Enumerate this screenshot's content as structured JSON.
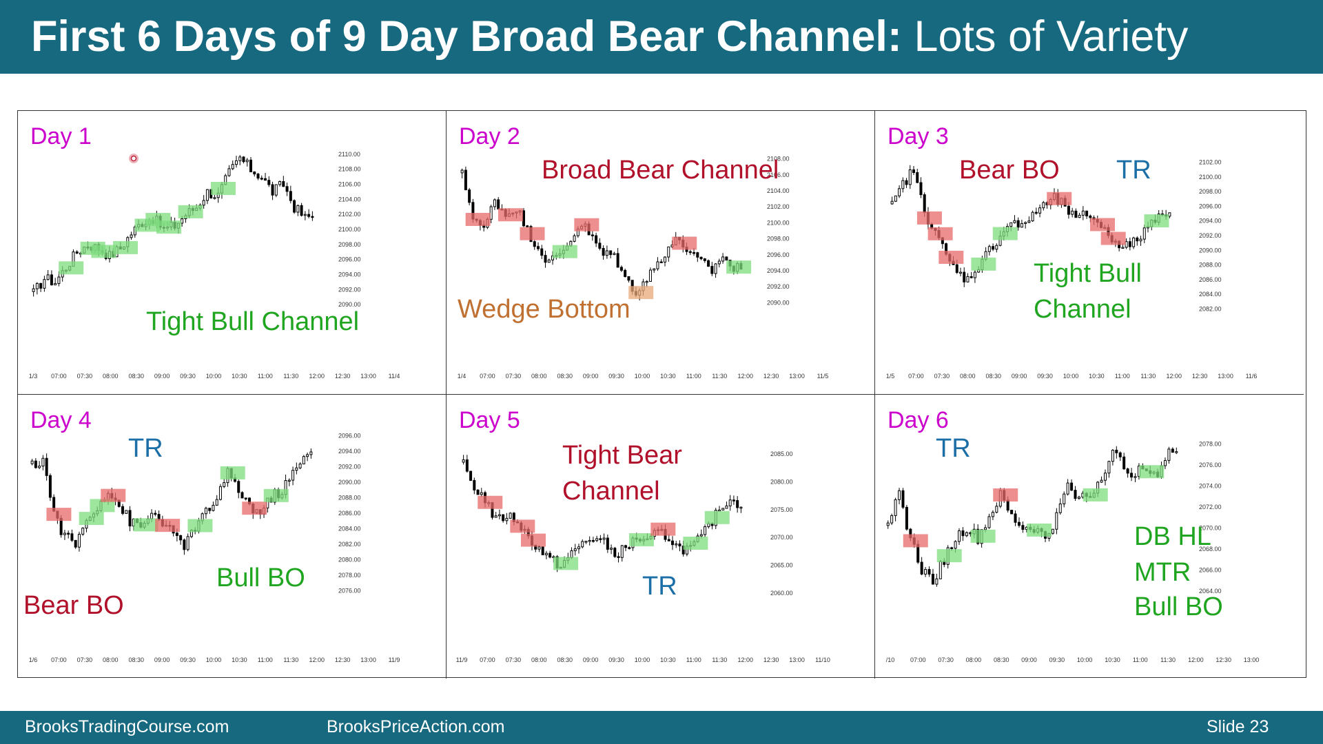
{
  "slide": {
    "title_bold": "First 6 Days of 9 Day Broad Bear Channel:",
    "title_normal": "Lots of Variety",
    "footer_left": "BrooksTradingCourse.com",
    "footer_mid": "BrooksPriceAction.com",
    "footer_right": "Slide  23"
  },
  "colors": {
    "header_bg": "#17697f",
    "day_label": "#cc00cc",
    "bull_annotation": "#1fa51f",
    "bear_annotation": "#b0102a",
    "tr_annotation": "#1c6fa6",
    "wedge_annotation": "#c07030",
    "bull_highlight": "#7ddc7d",
    "bear_highlight": "#e86a6a",
    "wedge_highlight": "#e8a878"
  },
  "chart_data": [
    {
      "type": "candlestick",
      "day": "Day 1",
      "x_ticks": [
        "1/3",
        "07:00",
        "07:30",
        "08:00",
        "08:30",
        "09:00",
        "09:30",
        "10:00",
        "10:30",
        "11:00",
        "11:30",
        "12:00",
        "12:30",
        "13:00",
        "11/4"
      ],
      "y_ticks": [
        "2110.00",
        "2108.00",
        "2106.00",
        "2104.00",
        "2102.00",
        "2100.00",
        "2098.00",
        "2096.00",
        "2094.00",
        "2092.00",
        "2090.00"
      ],
      "ylim": [
        2089,
        2111
      ],
      "close_path": [
        2091.5,
        2093.5,
        2093,
        2095,
        2097,
        2098,
        2097.5,
        2096.5,
        2097.5,
        2099.5,
        2101,
        2101.5,
        2100,
        2100.5,
        2102,
        2103,
        2105,
        2104.5,
        2107.5,
        2109.5,
        2108,
        2107,
        2105,
        2106,
        2103,
        2101.5,
        2102
      ],
      "annotations": [
        {
          "text": "Tight Bull Channel",
          "color": "bull"
        }
      ],
      "highlights": [
        {
          "idx": 3,
          "kind": "bull"
        },
        {
          "idx": 5,
          "kind": "bull"
        },
        {
          "idx": 6,
          "kind": "bull"
        },
        {
          "idx": 8,
          "kind": "bull"
        },
        {
          "idx": 10,
          "kind": "bull"
        },
        {
          "idx": 11,
          "kind": "bull"
        },
        {
          "idx": 12,
          "kind": "bull"
        },
        {
          "idx": 14,
          "kind": "bull"
        },
        {
          "idx": 17,
          "kind": "bull"
        }
      ]
    },
    {
      "type": "candlestick",
      "day": "Day 2",
      "x_ticks": [
        "1/4",
        "07:00",
        "07:30",
        "08:00",
        "08:30",
        "09:00",
        "09:30",
        "10:00",
        "10:30",
        "11:00",
        "11:30",
        "12:00",
        "12:30",
        "13:00",
        "11/5"
      ],
      "y_ticks": [
        "2108.00",
        "2106.00",
        "2104.00",
        "2102.00",
        "2100.00",
        "2098.00",
        "2096.00",
        "2094.00",
        "2092.00",
        "2090.00"
      ],
      "ylim": [
        2089,
        2109
      ],
      "close_path": [
        2106,
        2101,
        2099,
        2103,
        2101,
        2102,
        2099,
        2097,
        2095,
        2096,
        2098,
        2100,
        2098,
        2096,
        2096,
        2093,
        2091.5,
        2093,
        2095,
        2097,
        2098,
        2096,
        2095,
        2094,
        2096,
        2094,
        2095
      ],
      "annotations": [
        {
          "text": "Broad Bear Channel",
          "color": "bear"
        },
        {
          "text": "Wedge Bottom",
          "color": "wedge"
        }
      ],
      "highlights": [
        {
          "idx": 1,
          "kind": "bear"
        },
        {
          "idx": 4,
          "kind": "bear"
        },
        {
          "idx": 6,
          "kind": "bear"
        },
        {
          "idx": 9,
          "kind": "bull"
        },
        {
          "idx": 11,
          "kind": "bear"
        },
        {
          "idx": 16,
          "kind": "wedge"
        },
        {
          "idx": 20,
          "kind": "bear"
        },
        {
          "idx": 25,
          "kind": "bull"
        }
      ]
    },
    {
      "type": "candlestick",
      "day": "Day 3",
      "x_ticks": [
        "1/5",
        "07:00",
        "07:30",
        "08:00",
        "08:30",
        "09:00",
        "09:30",
        "10:00",
        "10:30",
        "11:00",
        "11:30",
        "12:00",
        "12:30",
        "13:00",
        "11/6"
      ],
      "y_ticks": [
        "2102.00",
        "2100.00",
        "2098.00",
        "2096.00",
        "2094.00",
        "2092.00",
        "2090.00",
        "2088.00",
        "2086.00",
        "2084.00",
        "2082.00"
      ],
      "ylim": [
        2081,
        2103
      ],
      "close_path": [
        2096,
        2099,
        2101,
        2095,
        2093,
        2089,
        2087,
        2086,
        2088,
        2090,
        2092,
        2094,
        2093,
        2095,
        2096,
        2097,
        2096,
        2094,
        2095,
        2094,
        2092,
        2091,
        2090.5,
        2092,
        2094,
        2095.5,
        2094
      ],
      "annotations": [
        {
          "text": "Bear BO",
          "color": "bear"
        },
        {
          "text": "TR",
          "color": "tr"
        },
        {
          "text": "Tight Bull",
          "color": "bull"
        },
        {
          "text": "Channel",
          "color": "bull"
        }
      ],
      "highlights": [
        {
          "idx": 3,
          "kind": "bear"
        },
        {
          "idx": 4,
          "kind": "bear"
        },
        {
          "idx": 5,
          "kind": "bear"
        },
        {
          "idx": 8,
          "kind": "bull"
        },
        {
          "idx": 10,
          "kind": "bull"
        },
        {
          "idx": 15,
          "kind": "bear"
        },
        {
          "idx": 19,
          "kind": "bear"
        },
        {
          "idx": 20,
          "kind": "bear"
        },
        {
          "idx": 24,
          "kind": "bull"
        }
      ]
    },
    {
      "type": "candlestick",
      "day": "Day 4",
      "x_ticks": [
        "1/6",
        "07:00",
        "07:30",
        "08:00",
        "08:30",
        "09:00",
        "09:30",
        "10:00",
        "10:30",
        "11:00",
        "11:30",
        "12:00",
        "12:30",
        "13:00",
        "11/9"
      ],
      "y_ticks": [
        "2096.00",
        "2094.00",
        "2092.00",
        "2090.00",
        "2088.00",
        "2086.00",
        "2084.00",
        "2082.00",
        "2080.00",
        "2078.00",
        "2076.00"
      ],
      "ylim": [
        2075,
        2097
      ],
      "close_path": [
        2092,
        2093,
        2086,
        2083,
        2082,
        2085,
        2087,
        2089,
        2087,
        2085,
        2084,
        2086,
        2085,
        2083,
        2082,
        2084,
        2086,
        2088,
        2091,
        2089,
        2087,
        2086,
        2088,
        2089,
        2091,
        2093,
        2094
      ],
      "annotations": [
        {
          "text": "TR",
          "color": "tr"
        },
        {
          "text": "Bull BO",
          "color": "bull"
        },
        {
          "text": "Bear BO",
          "color": "bear"
        }
      ],
      "highlights": [
        {
          "idx": 2,
          "kind": "bear"
        },
        {
          "idx": 5,
          "kind": "bull"
        },
        {
          "idx": 6,
          "kind": "bull"
        },
        {
          "idx": 7,
          "kind": "bear"
        },
        {
          "idx": 10,
          "kind": "bull"
        },
        {
          "idx": 12,
          "kind": "bear"
        },
        {
          "idx": 15,
          "kind": "bull"
        },
        {
          "idx": 18,
          "kind": "bull"
        },
        {
          "idx": 20,
          "kind": "bear"
        },
        {
          "idx": 22,
          "kind": "bull"
        }
      ]
    },
    {
      "type": "candlestick",
      "day": "Day 5",
      "x_ticks": [
        "11/9",
        "07:00",
        "07:30",
        "08:00",
        "08:30",
        "09:00",
        "09:30",
        "10:00",
        "10:30",
        "11:00",
        "11:30",
        "12:00",
        "12:30",
        "13:00",
        "11/10"
      ],
      "y_ticks": [
        "2085.00",
        "2080.00",
        "2075.00",
        "2070.00",
        "2065.00",
        "2060.00"
      ],
      "ylim": [
        2059,
        2087
      ],
      "close_path": [
        2083,
        2079,
        2077,
        2073,
        2074,
        2073,
        2070,
        2068,
        2066,
        2065,
        2067,
        2069,
        2070,
        2069,
        2067,
        2068,
        2070,
        2069,
        2071,
        2070,
        2068,
        2068,
        2070,
        2073,
        2076,
        2077,
        2075
      ],
      "annotations": [
        {
          "text": "Tight Bear",
          "color": "bear"
        },
        {
          "text": "Channel",
          "color": "bear"
        },
        {
          "text": "TR",
          "color": "tr"
        }
      ],
      "highlights": [
        {
          "idx": 2,
          "kind": "bear"
        },
        {
          "idx": 5,
          "kind": "bear"
        },
        {
          "idx": 6,
          "kind": "bear"
        },
        {
          "idx": 9,
          "kind": "bull"
        },
        {
          "idx": 16,
          "kind": "bull"
        },
        {
          "idx": 18,
          "kind": "bear"
        },
        {
          "idx": 21,
          "kind": "bull"
        },
        {
          "idx": 23,
          "kind": "bull"
        }
      ]
    },
    {
      "type": "candlestick",
      "day": "Day 6",
      "x_ticks": [
        "/10",
        "07:00",
        "07:30",
        "08:00",
        "08:30",
        "09:00",
        "09:30",
        "10:00",
        "10:30",
        "11:00",
        "11:30",
        "12:00",
        "12:30",
        "13:00"
      ],
      "y_ticks": [
        "2078.00",
        "2076.00",
        "2074.00",
        "2072.00",
        "2070.00",
        "2068.00",
        "2066.00",
        "2064.00"
      ],
      "ylim": [
        2063,
        2079
      ],
      "close_path": [
        2071,
        2073,
        2069,
        2066,
        2065,
        2067,
        2069,
        2070,
        2069,
        2071,
        2073,
        2071,
        2070,
        2070,
        2069,
        2071,
        2074,
        2073,
        2073,
        2075,
        2077,
        2076,
        2075,
        2076,
        2075,
        2077,
        2078
      ],
      "annotations": [
        {
          "text": "TR",
          "color": "tr"
        },
        {
          "text": "DB HL",
          "color": "bull"
        },
        {
          "text": "MTR",
          "color": "bull"
        },
        {
          "text": "Bull BO",
          "color": "bull"
        }
      ],
      "highlights": [
        {
          "idx": 2,
          "kind": "bear"
        },
        {
          "idx": 5,
          "kind": "bull"
        },
        {
          "idx": 8,
          "kind": "bull"
        },
        {
          "idx": 10,
          "kind": "bear"
        },
        {
          "idx": 13,
          "kind": "bull"
        },
        {
          "idx": 18,
          "kind": "bull"
        },
        {
          "idx": 23,
          "kind": "bull"
        }
      ]
    }
  ]
}
